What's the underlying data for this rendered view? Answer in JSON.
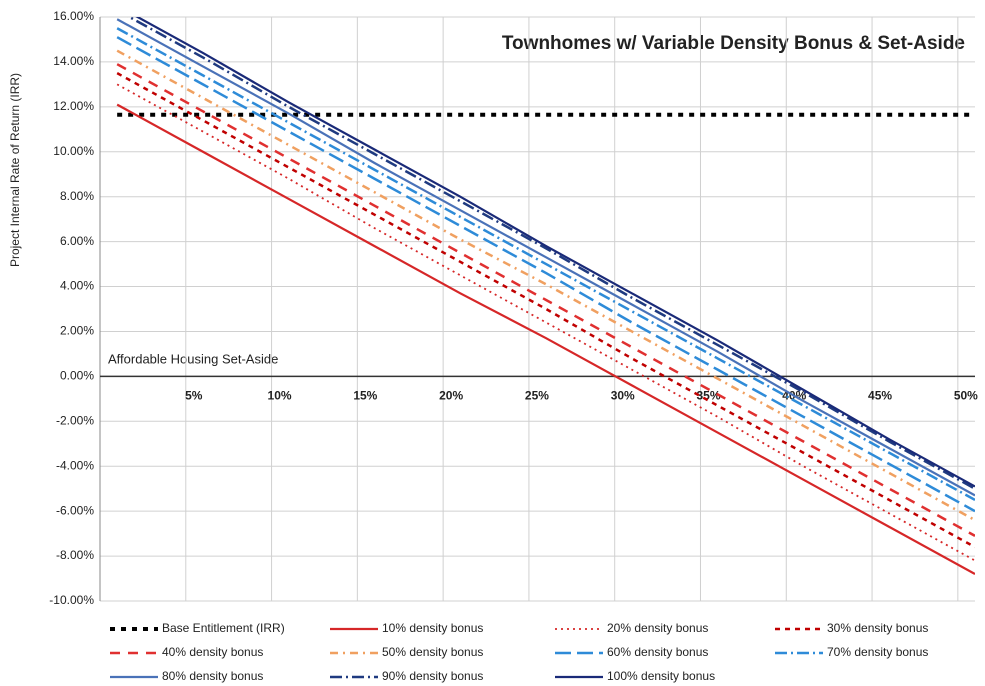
{
  "chart_data": {
    "type": "line",
    "title": "Townhomes w/ Variable Density Bonus & Set-Aside",
    "y_label": "Project Internal Rate of Return (IRR)",
    "annotation": "Affordable Housing Set-Aside",
    "x": [
      1,
      6,
      11,
      16,
      21,
      26,
      31,
      36,
      41,
      46,
      51
    ],
    "xlim": [
      0,
      51
    ],
    "xticks": [
      {
        "value": 5,
        "label": "5%"
      },
      {
        "value": 10,
        "label": "10%"
      },
      {
        "value": 15,
        "label": "15%"
      },
      {
        "value": 20,
        "label": "20%"
      },
      {
        "value": 25,
        "label": "25%"
      },
      {
        "value": 30,
        "label": "30%"
      },
      {
        "value": 35,
        "label": "35%"
      },
      {
        "value": 40,
        "label": "40%"
      },
      {
        "value": 45,
        "label": "45%"
      },
      {
        "value": 50,
        "label": "50%"
      }
    ],
    "ylim": [
      -10,
      16
    ],
    "yticks": [
      {
        "value": 16,
        "label": "16.00%"
      },
      {
        "value": 14,
        "label": "14.00%"
      },
      {
        "value": 12,
        "label": "12.00%"
      },
      {
        "value": 10,
        "label": "10.00%"
      },
      {
        "value": 8,
        "label": "8.00%"
      },
      {
        "value": 6,
        "label": "6.00%"
      },
      {
        "value": 4,
        "label": "4.00%"
      },
      {
        "value": 2,
        "label": "2.00%"
      },
      {
        "value": 0,
        "label": "0.00%"
      },
      {
        "value": -2,
        "label": "-2.00%"
      },
      {
        "value": -4,
        "label": "-4.00%"
      },
      {
        "value": -6,
        "label": "-6.00%"
      },
      {
        "value": -8,
        "label": "-8.00%"
      },
      {
        "value": -10,
        "label": "-10.00%"
      }
    ],
    "grid": true,
    "legend": "bottom",
    "series": [
      {
        "name": "Base Entitlement (IRR)",
        "color": "#000000",
        "values": [
          11.65,
          11.65,
          11.65,
          11.65,
          11.65,
          11.65,
          11.65,
          11.65,
          11.65,
          11.65,
          11.65
        ]
      },
      {
        "name": "10% density bonus",
        "color": "#d62728",
        "values": [
          12.1,
          10.0,
          7.9,
          5.8,
          3.7,
          1.7,
          -0.4,
          -2.5,
          -4.6,
          -6.7,
          -8.8
        ]
      },
      {
        "name": "20% density bonus",
        "color": "#d62728",
        "values": [
          13.0,
          10.9,
          8.8,
          6.6,
          4.5,
          2.4,
          0.3,
          -1.8,
          -4.0,
          -6.1,
          -8.2
        ]
      },
      {
        "name": "30% density bonus",
        "color": "#c00000",
        "values": [
          13.5,
          11.4,
          9.3,
          7.2,
          5.1,
          3.0,
          0.8,
          -1.3,
          -3.4,
          -5.5,
          -7.6
        ]
      },
      {
        "name": "40% density bonus",
        "color": "#e03030",
        "values": [
          13.9,
          11.8,
          9.7,
          7.6,
          5.5,
          3.4,
          1.3,
          -0.8,
          -2.9,
          -5.0,
          -7.1
        ]
      },
      {
        "name": "50% density bonus",
        "color": "#f0a060",
        "values": [
          14.5,
          12.4,
          10.3,
          8.2,
          6.1,
          4.1,
          2.0,
          -0.1,
          -2.2,
          -4.3,
          -6.4
        ]
      },
      {
        "name": "60% density bonus",
        "color": "#2e8bd8",
        "values": [
          15.1,
          13.0,
          10.9,
          8.8,
          6.7,
          4.6,
          2.4,
          0.3,
          -1.8,
          -3.9,
          -6.0
        ]
      },
      {
        "name": "70% density bonus",
        "color": "#2e8bd8",
        "values": [
          15.5,
          13.4,
          11.3,
          9.2,
          7.1,
          5.0,
          2.9,
          0.8,
          -1.3,
          -3.4,
          -5.5
        ]
      },
      {
        "name": "80% density bonus",
        "color": "#4a72b8",
        "values": [
          15.9,
          13.8,
          11.7,
          9.5,
          7.4,
          5.3,
          3.2,
          1.1,
          -1.1,
          -3.2,
          -5.3
        ]
      },
      {
        "name": "90% density bonus",
        "color": "#1f3a80",
        "values": [
          16.3,
          14.2,
          12.0,
          9.9,
          7.8,
          5.7,
          3.5,
          1.4,
          -0.7,
          -2.9,
          -5.0
        ]
      },
      {
        "name": "100% density bonus",
        "color": "#1a2a78",
        "values": [
          16.5,
          14.4,
          12.2,
          10.1,
          8.0,
          5.8,
          3.7,
          1.6,
          -0.6,
          -2.8,
          -4.9
        ]
      }
    ]
  }
}
